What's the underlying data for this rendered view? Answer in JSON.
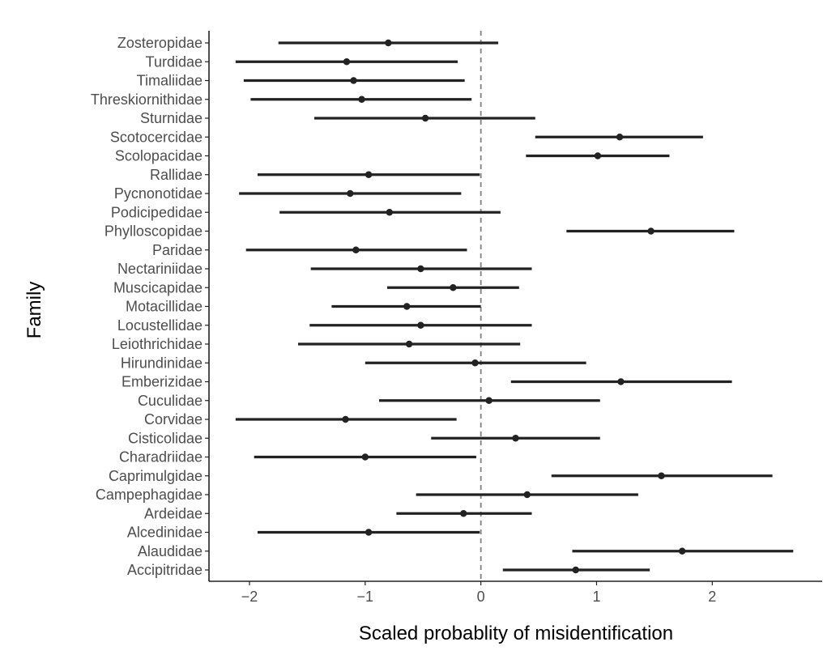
{
  "chart_data": {
    "type": "scatter",
    "subtype": "point-range",
    "title": "",
    "xlabel": "Scaled probablity of misidentification",
    "ylabel": "Family",
    "xlim": [
      -2.35,
      2.95
    ],
    "xticks": [
      -2,
      -1,
      0,
      1,
      2
    ],
    "xtick_labels": [
      "−2",
      "−1",
      "0",
      "1",
      "2"
    ],
    "reference_line": {
      "x": 0,
      "style": "dashed"
    },
    "grid": false,
    "legend": "none",
    "colors": {
      "point": "#222222",
      "reference": "#808080",
      "axis": "#222222",
      "tick_label": "#4d4d4d"
    },
    "points": [
      {
        "family": "Zosteropidae",
        "estimate": -0.8,
        "low": -1.75,
        "high": 0.15
      },
      {
        "family": "Turdidae",
        "estimate": -1.16,
        "low": -2.12,
        "high": -0.2
      },
      {
        "family": "Timaliidae",
        "estimate": -1.1,
        "low": -2.05,
        "high": -0.14
      },
      {
        "family": "Threskiornithidae",
        "estimate": -1.03,
        "low": -1.99,
        "high": -0.08
      },
      {
        "family": "Sturnidae",
        "estimate": -0.48,
        "low": -1.44,
        "high": 0.47
      },
      {
        "family": "Scotocercidae",
        "estimate": 1.2,
        "low": 0.47,
        "high": 1.92
      },
      {
        "family": "Scolopacidae",
        "estimate": 1.01,
        "low": 0.39,
        "high": 1.63
      },
      {
        "family": "Rallidae",
        "estimate": -0.97,
        "low": -1.93,
        "high": -0.01
      },
      {
        "family": "Pycnonotidae",
        "estimate": -1.13,
        "low": -2.09,
        "high": -0.17
      },
      {
        "family": "Podicipedidae",
        "estimate": -0.79,
        "low": -1.74,
        "high": 0.17
      },
      {
        "family": "Phylloscopidae",
        "estimate": 1.47,
        "low": 0.74,
        "high": 2.19
      },
      {
        "family": "Paridae",
        "estimate": -1.08,
        "low": -2.03,
        "high": -0.12
      },
      {
        "family": "Nectariniidae",
        "estimate": -0.52,
        "low": -1.47,
        "high": 0.44
      },
      {
        "family": "Muscicapidae",
        "estimate": -0.24,
        "low": -0.81,
        "high": 0.33
      },
      {
        "family": "Motacillidae",
        "estimate": -0.64,
        "low": -1.29,
        "high": 0.0
      },
      {
        "family": "Locustellidae",
        "estimate": -0.52,
        "low": -1.48,
        "high": 0.44
      },
      {
        "family": "Leiothrichidae",
        "estimate": -0.62,
        "low": -1.58,
        "high": 0.34
      },
      {
        "family": "Hirundinidae",
        "estimate": -0.05,
        "low": -1.0,
        "high": 0.91
      },
      {
        "family": "Emberizidae",
        "estimate": 1.21,
        "low": 0.26,
        "high": 2.17
      },
      {
        "family": "Cuculidae",
        "estimate": 0.07,
        "low": -0.88,
        "high": 1.03
      },
      {
        "family": "Corvidae",
        "estimate": -1.17,
        "low": -2.12,
        "high": -0.21
      },
      {
        "family": "Cisticolidae",
        "estimate": 0.3,
        "low": -0.43,
        "high": 1.03
      },
      {
        "family": "Charadriidae",
        "estimate": -1.0,
        "low": -1.96,
        "high": -0.04
      },
      {
        "family": "Caprimulgidae",
        "estimate": 1.56,
        "low": 0.61,
        "high": 2.52
      },
      {
        "family": "Campephagidae",
        "estimate": 0.4,
        "low": -0.56,
        "high": 1.36
      },
      {
        "family": "Ardeidae",
        "estimate": -0.15,
        "low": -0.73,
        "high": 0.44
      },
      {
        "family": "Alcedinidae",
        "estimate": -0.97,
        "low": -1.93,
        "high": -0.01
      },
      {
        "family": "Alaudidae",
        "estimate": 1.74,
        "low": 0.79,
        "high": 2.7
      },
      {
        "family": "Accipitridae",
        "estimate": 0.82,
        "low": 0.19,
        "high": 1.46
      }
    ]
  }
}
